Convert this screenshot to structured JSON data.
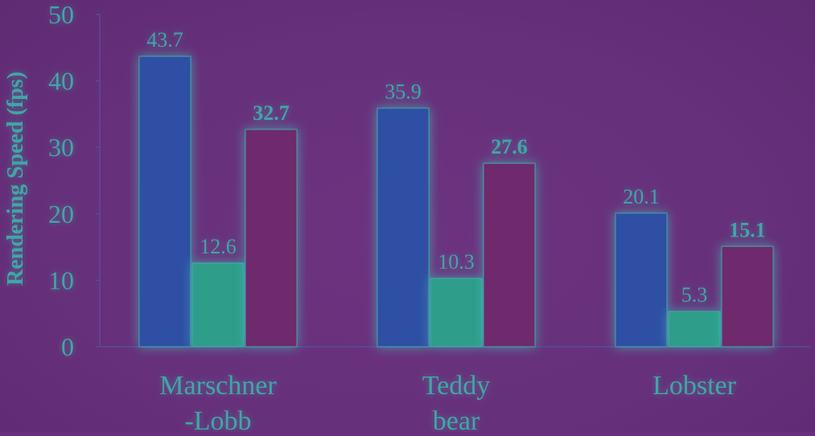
{
  "chart_data": {
    "type": "bar",
    "title": "",
    "xlabel": "",
    "ylabel": "Rendering Speed (fps)",
    "ylim": [
      0,
      50
    ],
    "yticks": [
      0,
      10,
      20,
      30,
      40,
      50
    ],
    "categories": [
      "Marschner\n-Lobb",
      "Teddy\nbear",
      "Lobster"
    ],
    "series": [
      {
        "values": [
          43.7,
          35.9,
          20.1
        ],
        "color": "#2f4fa3",
        "label_bold": false
      },
      {
        "values": [
          12.6,
          10.3,
          5.3
        ],
        "color": "#2f9d8a",
        "label_bold": false
      },
      {
        "values": [
          32.7,
          27.6,
          15.1
        ],
        "color": "#6e2a6c",
        "label_bold": true
      }
    ],
    "grid": false,
    "legend": "none",
    "colors": {
      "background": "#6a2f7c",
      "axis": "#5a4a9a",
      "text": "#3fa6a4",
      "glow": "#3fb8b2"
    }
  }
}
